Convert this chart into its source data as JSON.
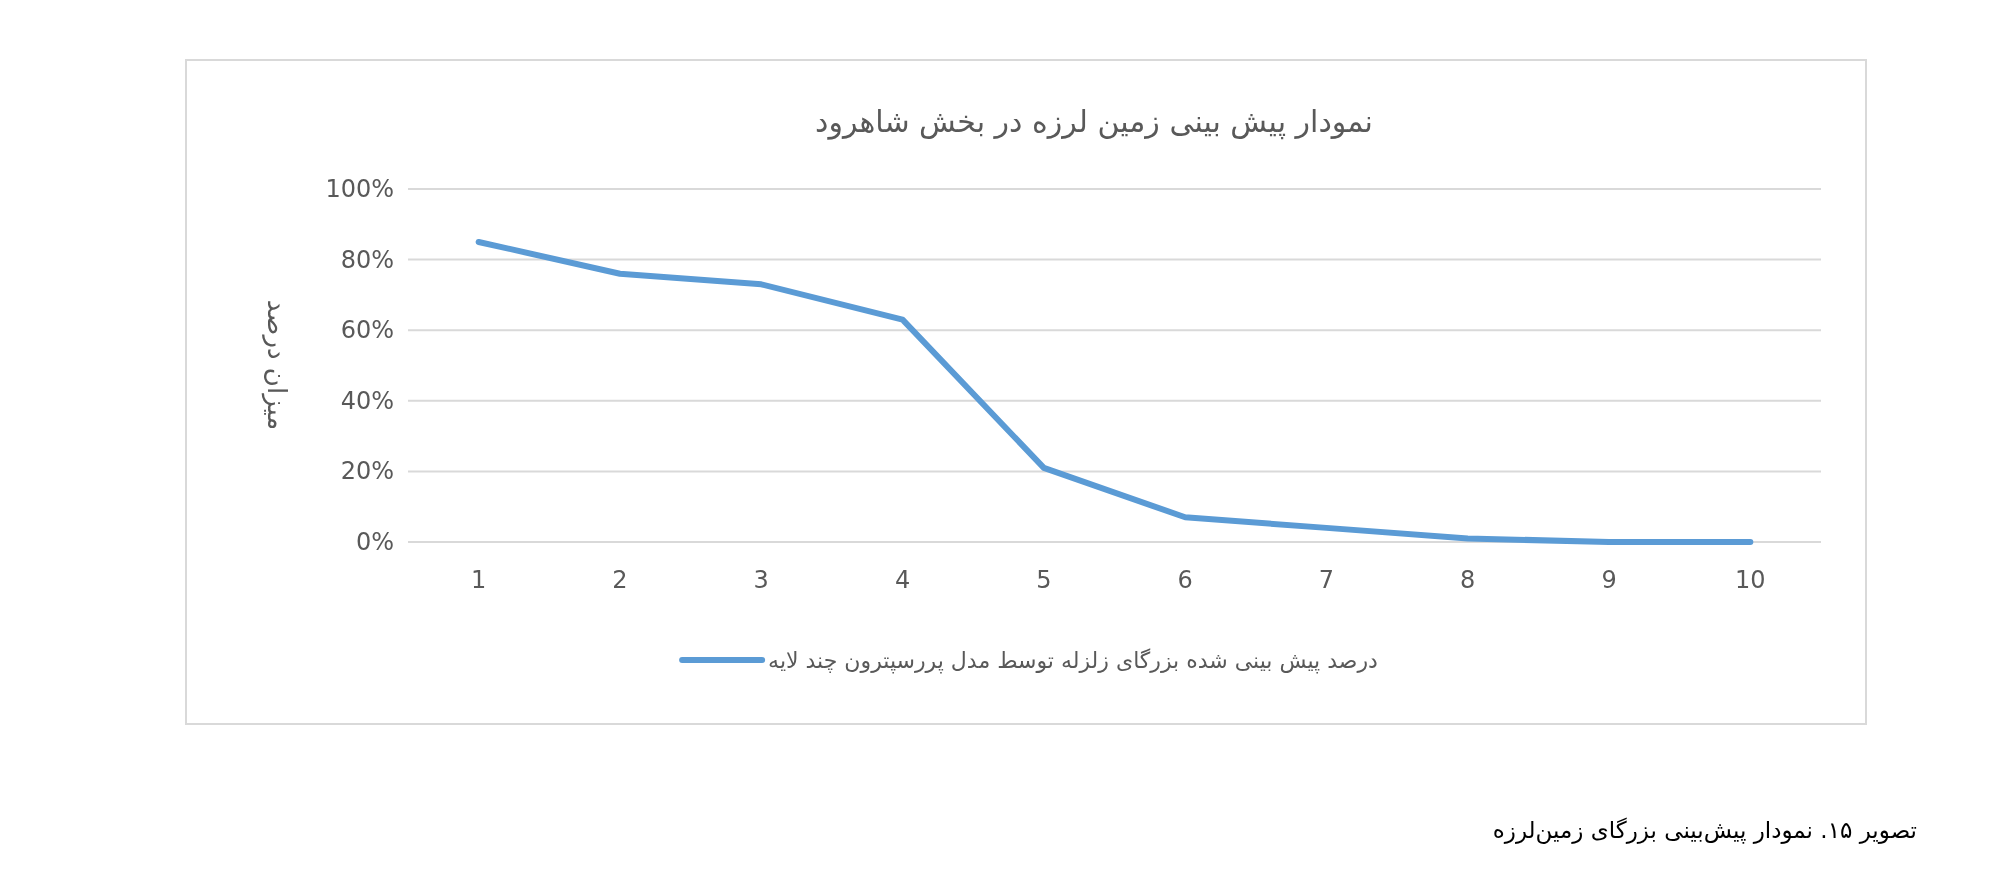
{
  "chart_data": {
    "type": "line",
    "title": "نمودار پیش بینی زمین لرزه در بخش شاهرود",
    "ylabel": "میزان درصد",
    "categories": [
      "1",
      "2",
      "3",
      "4",
      "5",
      "6",
      "7",
      "8",
      "9",
      "10"
    ],
    "series": [
      {
        "name": "درصد پیش بینی شده بزرگای زلزله توسط مدل پررسپترون چند لایه",
        "color": "#5b9bd5",
        "values": [
          85,
          76,
          73,
          63,
          21,
          7,
          4,
          1,
          0,
          0
        ]
      }
    ],
    "ylim": [
      0,
      100
    ],
    "yticks": [
      {
        "value": 0,
        "label": "0%"
      },
      {
        "value": 20,
        "label": "20%"
      },
      {
        "value": 40,
        "label": "40%"
      },
      {
        "value": 60,
        "label": "60%"
      },
      {
        "value": 80,
        "label": "80%"
      },
      {
        "value": 100,
        "label": "100%"
      }
    ],
    "grid": "y",
    "legend": "bottom",
    "annotations": [
      "تصویر ۱۵. نمودار پیش‌بینی بزرگای زمین‌لرزه"
    ]
  }
}
